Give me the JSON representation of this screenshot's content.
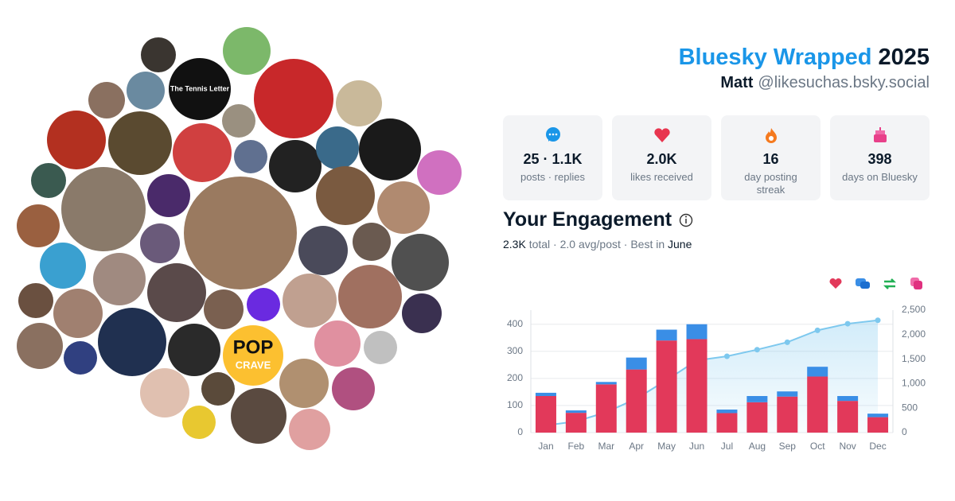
{
  "header": {
    "title": "Bluesky Wrapped",
    "year": "2025",
    "name": "Matt",
    "handle": "@likesuchas.bsky.social"
  },
  "avatars": {
    "logo_1": "The Tennis Letter",
    "logo_2": "POP",
    "logo_3": "CRAVE"
  },
  "stats": [
    {
      "value": "25 · 1.1K",
      "label": "posts · replies"
    },
    {
      "value": "2.0K",
      "label": "likes received"
    },
    {
      "value": "16",
      "label": "day posting streak"
    },
    {
      "value": "398",
      "label": "days on Bluesky"
    }
  ],
  "engagement": {
    "title": "Your Engagement",
    "total": "2.3K",
    "summary": "total · 2.0 avg/post · Best in",
    "best": "June"
  },
  "chart_data": {
    "type": "bar",
    "stacked": true,
    "grid": true,
    "categories": [
      "Jan",
      "Feb",
      "Mar",
      "Apr",
      "May",
      "Jun",
      "Jul",
      "Aug",
      "Sep",
      "Oct",
      "Nov",
      "Dec"
    ],
    "series": [
      {
        "color": "#e2395a",
        "values": [
          135,
          73,
          178,
          233,
          340,
          345,
          72,
          112,
          133,
          207,
          117,
          57
        ]
      },
      {
        "color": "#3a8ee6",
        "values": [
          12,
          9,
          9,
          44,
          40,
          55,
          13,
          23,
          19,
          36,
          18,
          13
        ]
      },
      {
        "color": "#7dc8ee",
        "type": "line",
        "axis": "y2",
        "values": [
          147,
          229,
          416,
          693,
          1073,
          1473,
          1558,
          1693,
          1845,
          2088,
          2223,
          2293
        ]
      }
    ],
    "ylim": [
      0,
      452
    ],
    "yticks": [
      0,
      100,
      200,
      300,
      400
    ],
    "y2lim": [
      0,
      2500
    ],
    "y2ticks": [
      0,
      500,
      {
        "value": 1000,
        "label": "1,000"
      },
      {
        "value": 1500,
        "label": "1,500"
      },
      {
        "value": 2000,
        "label": "2,000"
      },
      {
        "value": 2500,
        "label": "2,500"
      }
    ]
  }
}
